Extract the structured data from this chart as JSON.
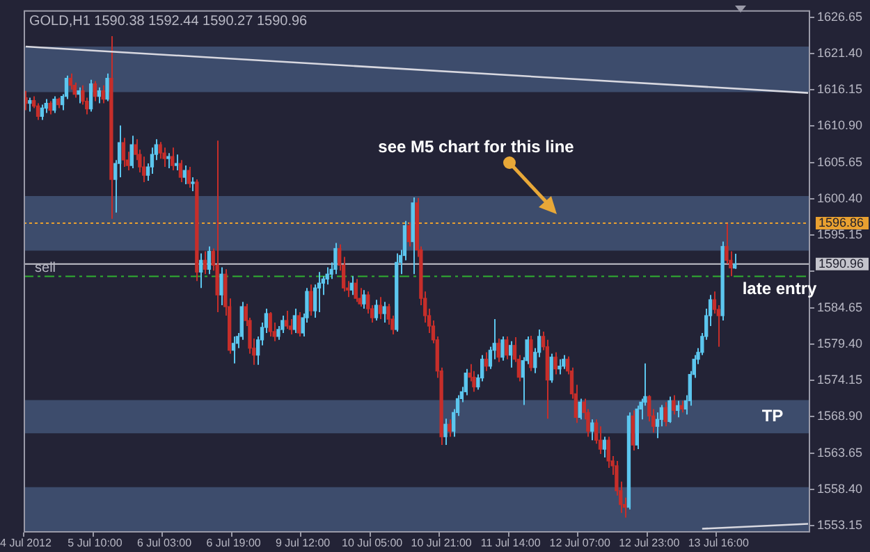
{
  "chart_data": {
    "type": "candlestick",
    "title": "GOLD,H1 1590.38 1592.44 1590.27 1590.96",
    "categories": [
      "4 Jul 2012",
      null,
      null,
      null,
      null,
      null,
      null,
      null,
      null,
      null,
      null,
      null,
      null,
      null,
      null,
      null,
      null,
      "5 Jul 10:00",
      null,
      null,
      null,
      null,
      null,
      null,
      null,
      null,
      null,
      null,
      null,
      null,
      null,
      null,
      null,
      null,
      "6 Jul 03:00",
      null,
      null,
      null,
      null,
      null,
      null,
      null,
      null,
      null,
      null,
      null,
      null,
      null,
      null,
      null,
      null,
      "6 Jul 19:00",
      null,
      null,
      null,
      null,
      null,
      null,
      null,
      null,
      null,
      null,
      null,
      null,
      null,
      null,
      null,
      null,
      "9 Jul 12:00",
      null,
      null,
      null,
      null,
      null,
      null,
      null,
      null,
      null,
      null,
      null,
      null,
      null,
      null,
      null,
      null,
      "10 Jul 05:00",
      null,
      null,
      null,
      null,
      null,
      null,
      null,
      null,
      null,
      null,
      null,
      null,
      null,
      null,
      null,
      null,
      "10 Jul 21:00",
      null,
      null,
      null,
      null,
      null,
      null,
      null,
      null,
      null,
      null,
      null,
      null,
      null,
      null,
      null,
      null,
      "11 Jul 14:00",
      null,
      null,
      null,
      null,
      null,
      null,
      null,
      null,
      null,
      null,
      null,
      null,
      null,
      null,
      null,
      null,
      "12 Jul 07:00",
      null,
      null,
      null,
      null,
      null,
      null,
      null,
      null,
      null,
      null,
      null,
      null,
      null,
      null,
      null,
      null,
      "12 Jul 23:00",
      null,
      null,
      null,
      null,
      null,
      null,
      null,
      null,
      null,
      null,
      null,
      null,
      null,
      null,
      null,
      null,
      "13 Jul 16:00",
      null,
      null,
      null,
      null,
      null,
      null,
      null,
      null,
      null,
      null,
      null,
      null,
      null,
      null,
      null,
      null,
      null,
      null,
      null,
      null,
      null,
      null
    ],
    "ohlc": [
      [
        1615,
        1616,
        1613.2,
        1614.2
      ],
      [
        1614.2,
        1615,
        1613,
        1614.6
      ],
      [
        1614.6,
        1615.2,
        1613.5,
        1613.8
      ],
      [
        1613.8,
        1614.2,
        1611.8,
        1612.3
      ],
      [
        1612.3,
        1614,
        1611.8,
        1613.5
      ],
      [
        1613.5,
        1614.8,
        1612.8,
        1614.2
      ],
      [
        1614.2,
        1614.5,
        1612.6,
        1613.2
      ],
      [
        1613.2,
        1615.2,
        1612.8,
        1614.8
      ],
      [
        1614.8,
        1615,
        1613.5,
        1614
      ],
      [
        1614,
        1615.5,
        1613.2,
        1615.2
      ],
      [
        1615.2,
        1618.2,
        1614.8,
        1617.8
      ],
      [
        1617.8,
        1618.5,
        1616.2,
        1616.8
      ],
      [
        1616.8,
        1617.2,
        1615,
        1615.5
      ],
      [
        1615.5,
        1616.5,
        1614.2,
        1616
      ],
      [
        1616,
        1616.8,
        1614,
        1614.5
      ],
      [
        1614.5,
        1615,
        1612.6,
        1613.4
      ],
      [
        1613.4,
        1617.6,
        1613,
        1617
      ],
      [
        1617,
        1617.4,
        1614.5,
        1615.2
      ],
      [
        1615.2,
        1616.5,
        1614.2,
        1616
      ],
      [
        1616,
        1616.8,
        1614.2,
        1614.8
      ],
      [
        1614.8,
        1618.5,
        1614.5,
        1617.8
      ],
      [
        1617.8,
        1623.9,
        1597.5,
        1603.2
      ],
      [
        1603.2,
        1606,
        1598.4,
        1605.5
      ],
      [
        1605.5,
        1611,
        1603.5,
        1608.5
      ],
      [
        1608.5,
        1609.2,
        1605,
        1606
      ],
      [
        1606,
        1607.2,
        1604.5,
        1605.2
      ],
      [
        1605.2,
        1609.5,
        1604.8,
        1608.2
      ],
      [
        1608.2,
        1609,
        1606,
        1606.8
      ],
      [
        1606.8,
        1607.5,
        1604.2,
        1605
      ],
      [
        1605,
        1606.5,
        1602.8,
        1603.8
      ],
      [
        1603.8,
        1605.5,
        1603,
        1605
      ],
      [
        1605,
        1607.8,
        1604,
        1606.8
      ],
      [
        1606.8,
        1609,
        1606,
        1608.2
      ],
      [
        1608.2,
        1608.6,
        1606.2,
        1607
      ],
      [
        1607,
        1607.8,
        1605,
        1606.2
      ],
      [
        1606.2,
        1607,
        1604.8,
        1606.5
      ],
      [
        1606.5,
        1607.8,
        1604.5,
        1605.2
      ],
      [
        1605.2,
        1606.8,
        1604.5,
        1605.5
      ],
      [
        1605.5,
        1606,
        1602.8,
        1603.5
      ],
      [
        1603.5,
        1605.2,
        1602.5,
        1604.5
      ],
      [
        1604.5,
        1605,
        1602,
        1602.6
      ],
      [
        1602.6,
        1603.5,
        1601.5,
        1602.8
      ],
      [
        1602.8,
        1603.2,
        1588.5,
        1589.8
      ],
      [
        1589.8,
        1592.5,
        1587.5,
        1591.5
      ],
      [
        1591.5,
        1592.8,
        1589.5,
        1590.2
      ],
      [
        1590.2,
        1593.5,
        1589.5,
        1592.8
      ],
      [
        1592.8,
        1593.2,
        1590,
        1590.8
      ],
      [
        1590.8,
        1608.8,
        1584,
        1586.5
      ],
      [
        1586.5,
        1590.5,
        1585,
        1589.5
      ],
      [
        1589.5,
        1590.2,
        1583.5,
        1584.8
      ],
      [
        1584.8,
        1586,
        1578,
        1578.5
      ],
      [
        1578.5,
        1580.5,
        1576.6,
        1579.5
      ],
      [
        1579.5,
        1581,
        1578.8,
        1580.5
      ],
      [
        1580.5,
        1585.5,
        1580,
        1584.8
      ],
      [
        1584.8,
        1585.2,
        1582,
        1582.8
      ],
      [
        1582.8,
        1583.2,
        1578,
        1578.8
      ],
      [
        1578.8,
        1580.2,
        1576.4,
        1577.8
      ],
      [
        1577.8,
        1580.5,
        1576.4,
        1580
      ],
      [
        1580,
        1582.5,
        1579.2,
        1581.8
      ],
      [
        1581.8,
        1584.5,
        1581,
        1583.8
      ],
      [
        1583.8,
        1584,
        1580.5,
        1581.2
      ],
      [
        1581.2,
        1582.5,
        1579.8,
        1580.5
      ],
      [
        1580.5,
        1582,
        1580,
        1581.5
      ],
      [
        1581.5,
        1583.5,
        1581,
        1582.8
      ],
      [
        1582.8,
        1584.2,
        1581.6,
        1582
      ],
      [
        1582,
        1583,
        1580.8,
        1581.5
      ],
      [
        1581.5,
        1584.5,
        1581,
        1583.5
      ],
      [
        1583.5,
        1584,
        1580.5,
        1581
      ],
      [
        1581,
        1583.8,
        1580.5,
        1583.2
      ],
      [
        1583.2,
        1587.5,
        1582.5,
        1587
      ],
      [
        1587,
        1588,
        1583.5,
        1584.2
      ],
      [
        1584.2,
        1588,
        1583.2,
        1587.5
      ],
      [
        1587.5,
        1589.8,
        1584,
        1588.2
      ],
      [
        1588.2,
        1589.2,
        1586.5,
        1588.8
      ],
      [
        1588.8,
        1590.5,
        1588,
        1589.5
      ],
      [
        1589.5,
        1591.2,
        1588.8,
        1590.2
      ],
      [
        1590.2,
        1594,
        1589.5,
        1593.2
      ],
      [
        1593.2,
        1593.8,
        1590,
        1590.8
      ],
      [
        1590.8,
        1592,
        1587,
        1587.5
      ],
      [
        1587.5,
        1588.5,
        1586.2,
        1587.2
      ],
      [
        1587.2,
        1589.2,
        1586.5,
        1588.2
      ],
      [
        1588.2,
        1588.8,
        1585.5,
        1586
      ],
      [
        1586,
        1587.5,
        1584.8,
        1585.2
      ],
      [
        1585.2,
        1587.2,
        1584.5,
        1586.5
      ],
      [
        1586.5,
        1587,
        1583.8,
        1584.5
      ],
      [
        1584.5,
        1585,
        1582.5,
        1583.2
      ],
      [
        1583.2,
        1585.8,
        1582.8,
        1585
      ],
      [
        1585,
        1586.2,
        1583,
        1583.8
      ],
      [
        1583.8,
        1585.5,
        1582.5,
        1584.8
      ],
      [
        1584.8,
        1585.2,
        1582.2,
        1583
      ],
      [
        1583,
        1583.5,
        1580.8,
        1581.5
      ],
      [
        1581.5,
        1592.5,
        1581.2,
        1591.2
      ],
      [
        1591.2,
        1593,
        1589.5,
        1592.2
      ],
      [
        1592.2,
        1597.2,
        1591.5,
        1596.5
      ],
      [
        1596.5,
        1597,
        1593.5,
        1594.2
      ],
      [
        1594.2,
        1600.6,
        1589.5,
        1599.8
      ],
      [
        1599.8,
        1600.5,
        1592,
        1593
      ],
      [
        1593,
        1593.5,
        1585,
        1586
      ],
      [
        1586,
        1587,
        1582.5,
        1583.5
      ],
      [
        1583.5,
        1584.5,
        1581,
        1582
      ],
      [
        1582,
        1582.8,
        1579.5,
        1580
      ],
      [
        1580,
        1580.5,
        1574.5,
        1575.5
      ],
      [
        1575.5,
        1576,
        1564.8,
        1566
      ],
      [
        1566,
        1568.6,
        1564.8,
        1567.8
      ],
      [
        1567.8,
        1568.5,
        1566,
        1566.8
      ],
      [
        1566.8,
        1570,
        1566,
        1569.5
      ],
      [
        1569.5,
        1572,
        1569,
        1571.5
      ],
      [
        1571.5,
        1573.2,
        1571,
        1572.5
      ],
      [
        1572.5,
        1575.8,
        1572,
        1575.2
      ],
      [
        1575.2,
        1576.5,
        1574,
        1574.6
      ],
      [
        1574.6,
        1575.5,
        1572.5,
        1573.2
      ],
      [
        1573.2,
        1575,
        1572.8,
        1574.5
      ],
      [
        1574.5,
        1577.8,
        1574,
        1577.2
      ],
      [
        1577.2,
        1578.2,
        1575.5,
        1576.2
      ],
      [
        1576.2,
        1579,
        1575.8,
        1578.5
      ],
      [
        1578.5,
        1583,
        1577.2,
        1579.5
      ],
      [
        1579.5,
        1580.2,
        1576.8,
        1577.5
      ],
      [
        1577.5,
        1580.5,
        1577,
        1580
      ],
      [
        1580,
        1580.5,
        1577.2,
        1577.8
      ],
      [
        1577.8,
        1579.8,
        1576,
        1579.2
      ],
      [
        1579.2,
        1580.4,
        1576.8,
        1577.2
      ],
      [
        1577.2,
        1577.8,
        1574,
        1574.6
      ],
      [
        1574.6,
        1577.5,
        1570.6,
        1577
      ],
      [
        1577,
        1580.5,
        1576.5,
        1580
      ],
      [
        1580,
        1580.6,
        1575.5,
        1576
      ],
      [
        1576,
        1578.8,
        1575.2,
        1578.2
      ],
      [
        1578.2,
        1581.5,
        1577.5,
        1580.5
      ],
      [
        1580.5,
        1581.2,
        1578.5,
        1579
      ],
      [
        1579,
        1580,
        1568.6,
        1574.2
      ],
      [
        1574.2,
        1578,
        1573.8,
        1577.5
      ],
      [
        1577.5,
        1578.2,
        1575,
        1575.8
      ],
      [
        1575.8,
        1577.2,
        1575,
        1576.2
      ],
      [
        1576.2,
        1577.8,
        1575.8,
        1577.2
      ],
      [
        1577.2,
        1577.6,
        1575,
        1575.5
      ],
      [
        1575.5,
        1576,
        1571.5,
        1572.2
      ],
      [
        1572.2,
        1573.5,
        1568,
        1568.8
      ],
      [
        1568.8,
        1571.5,
        1568.5,
        1571
      ],
      [
        1571,
        1571.5,
        1568.5,
        1569.5
      ],
      [
        1569.5,
        1570,
        1566,
        1566.8
      ],
      [
        1566.8,
        1568.5,
        1565.5,
        1568
      ],
      [
        1568,
        1568.5,
        1565,
        1565.5
      ],
      [
        1565.5,
        1567.5,
        1563.5,
        1564.2
      ],
      [
        1564.2,
        1566,
        1563,
        1565.5
      ],
      [
        1565.5,
        1566,
        1561.5,
        1562.5
      ],
      [
        1562.5,
        1563.2,
        1560.5,
        1561.8
      ],
      [
        1561.8,
        1562.5,
        1557.5,
        1558.2
      ],
      [
        1558.2,
        1559.5,
        1555,
        1556.2
      ],
      [
        1556.2,
        1557.2,
        1554.3,
        1555.8
      ],
      [
        1555.8,
        1569.5,
        1555.5,
        1569
      ],
      [
        1569,
        1569.8,
        1564,
        1564.8
      ],
      [
        1564.8,
        1570.5,
        1564.2,
        1570
      ],
      [
        1570,
        1571.5,
        1568.5,
        1571
      ],
      [
        1571,
        1576.6,
        1570.5,
        1571.8
      ],
      [
        1571.8,
        1572,
        1568.2,
        1569
      ],
      [
        1569,
        1570,
        1566.6,
        1567.5
      ],
      [
        1567.5,
        1569.5,
        1565.8,
        1568.5
      ],
      [
        1568.5,
        1570.6,
        1567.5,
        1570.2
      ],
      [
        1570.2,
        1571,
        1567.5,
        1568.2
      ],
      [
        1568.2,
        1571.8,
        1568,
        1571.2
      ],
      [
        1571.2,
        1572,
        1569.2,
        1569.8
      ],
      [
        1569.8,
        1571.2,
        1568.8,
        1570.5
      ],
      [
        1570.5,
        1571.2,
        1569.5,
        1570
      ],
      [
        1570,
        1572,
        1569.2,
        1571.2
      ],
      [
        1571.2,
        1575.5,
        1570.5,
        1575
      ],
      [
        1575,
        1577.8,
        1574.5,
        1577.2
      ],
      [
        1577.2,
        1578.8,
        1576.5,
        1578.2
      ],
      [
        1578.2,
        1581,
        1577.8,
        1580.5
      ],
      [
        1580.5,
        1584.5,
        1580,
        1583.5
      ],
      [
        1583.5,
        1586.5,
        1582,
        1585.8
      ],
      [
        1585.8,
        1587,
        1583.8,
        1584.4
      ],
      [
        1584.4,
        1585,
        1579,
        1583.5
      ],
      [
        1583.5,
        1594.2,
        1582.8,
        1593.5
      ],
      [
        1593.5,
        1596.8,
        1591,
        1591.5
      ],
      [
        1591.5,
        1592.8,
        1589.2,
        1590.4
      ],
      [
        1590.38,
        1592.44,
        1590.27,
        1590.96
      ],
      null,
      null,
      null,
      null,
      null,
      null,
      null,
      null,
      null,
      null,
      null,
      null,
      null,
      null,
      null,
      null,
      null,
      null
    ],
    "series": [
      {
        "type": "line",
        "color": "#d8d8e0",
        "values": [
          1622.4,
          null,
          null,
          null,
          null,
          null,
          null,
          null,
          null,
          null,
          null,
          null,
          null,
          null,
          null,
          null,
          null,
          null,
          null,
          null,
          null,
          null,
          null,
          null,
          null,
          null,
          null,
          null,
          null,
          null,
          null,
          null,
          null,
          null,
          null,
          null,
          null,
          null,
          null,
          null,
          null,
          null,
          null,
          null,
          null,
          null,
          null,
          null,
          null,
          null,
          null,
          null,
          null,
          null,
          null,
          null,
          null,
          null,
          null,
          null,
          null,
          null,
          null,
          null,
          null,
          null,
          null,
          null,
          null,
          null,
          null,
          null,
          null,
          null,
          null,
          null,
          null,
          null,
          null,
          null,
          null,
          null,
          null,
          null,
          null,
          null,
          null,
          null,
          null,
          null,
          null,
          null,
          null,
          null,
          null,
          null,
          null,
          null,
          null,
          null,
          null,
          null,
          null,
          null,
          null,
          null,
          null,
          null,
          null,
          null,
          null,
          null,
          null,
          null,
          null,
          null,
          null,
          null,
          null,
          null,
          null,
          null,
          null,
          null,
          null,
          null,
          null,
          null,
          null,
          null,
          null,
          null,
          null,
          null,
          null,
          null,
          null,
          null,
          null,
          null,
          null,
          null,
          null,
          null,
          null,
          null,
          null,
          null,
          null,
          null,
          null,
          null,
          null,
          null,
          null,
          null,
          null,
          null,
          null,
          null,
          null,
          null,
          null,
          null,
          null,
          null,
          null,
          null,
          null,
          null,
          null,
          null,
          null,
          null,
          null,
          null,
          null,
          null,
          null,
          null,
          null,
          null,
          null,
          null,
          null,
          null,
          null,
          null,
          null,
          null,
          null,
          null,
          1615.7
        ]
      },
      {
        "type": "line",
        "color": "#d8d8e0",
        "values": [
          null,
          null,
          null,
          null,
          null,
          null,
          null,
          null,
          null,
          null,
          null,
          null,
          null,
          null,
          null,
          null,
          null,
          null,
          null,
          null,
          null,
          null,
          null,
          null,
          null,
          null,
          null,
          null,
          null,
          null,
          null,
          null,
          null,
          null,
          null,
          null,
          null,
          null,
          null,
          null,
          null,
          null,
          null,
          null,
          null,
          null,
          null,
          null,
          null,
          null,
          null,
          null,
          null,
          null,
          null,
          null,
          null,
          null,
          null,
          null,
          null,
          null,
          null,
          null,
          null,
          null,
          null,
          null,
          null,
          null,
          null,
          null,
          null,
          null,
          null,
          null,
          null,
          null,
          null,
          null,
          null,
          null,
          null,
          null,
          null,
          null,
          null,
          null,
          null,
          null,
          null,
          null,
          null,
          null,
          null,
          null,
          null,
          null,
          null,
          null,
          null,
          null,
          null,
          null,
          null,
          null,
          null,
          null,
          null,
          null,
          null,
          null,
          null,
          null,
          null,
          null,
          null,
          null,
          null,
          null,
          null,
          null,
          null,
          null,
          null,
          null,
          null,
          null,
          null,
          null,
          null,
          null,
          null,
          null,
          null,
          null,
          null,
          null,
          null,
          null,
          null,
          null,
          null,
          null,
          null,
          null,
          null,
          null,
          null,
          null,
          null,
          null,
          null,
          null,
          null,
          null,
          null,
          null,
          null,
          null,
          null,
          null,
          null,
          null,
          null,
          null,
          1552.7,
          null,
          null,
          null,
          null,
          null,
          null,
          null,
          null,
          null,
          null,
          null,
          null,
          null,
          null,
          null,
          null,
          null,
          null,
          null,
          null,
          null,
          null,
          null,
          null,
          null,
          1553.4
        ]
      }
    ],
    "ylim": [
      1552.15,
      1627.64
    ],
    "yticks": [
      1626.65,
      {
        "value": 1621.4,
        "label": "1621.40"
      },
      1616.15,
      {
        "value": 1610.9,
        "label": "1610.90"
      },
      1605.65,
      {
        "value": 1600.4,
        "label": "1600.40"
      },
      1595.15,
      {
        "value": 1589.9,
        "label": null
      },
      1584.65,
      {
        "value": 1579.4,
        "label": "1579.40"
      },
      1574.15,
      {
        "value": 1568.9,
        "label": "1568.90"
      },
      1563.65,
      {
        "value": 1558.4,
        "label": "1558.40"
      },
      1553.15
    ],
    "bands": [
      {
        "axis": "y",
        "from": 1615.8,
        "to": 1622.4,
        "color": "#3d4c6c"
      },
      {
        "axis": "y",
        "from": 1592.9,
        "to": 1600.8,
        "color": "#3d4c6c"
      },
      {
        "axis": "y",
        "from": 1566.5,
        "to": 1571.3,
        "label": "TP",
        "color": "#3d4c6c"
      },
      {
        "axis": "y",
        "from": 1552.15,
        "to": 1558.7,
        "color": "#3d4c6c"
      }
    ],
    "ref_lines": [
      {
        "axis": "y",
        "value": 1596.86,
        "label": "1596.86",
        "color": "#e8a030",
        "line_style": "dotted"
      },
      {
        "axis": "y",
        "value": 1590.96,
        "label": "1590.96",
        "color": "#c4c4cc",
        "line_style": "solid"
      },
      {
        "axis": "y",
        "value": 1589.17,
        "label": "sell",
        "color": "#30b030",
        "line_style": "dashed"
      }
    ],
    "annotations": [
      "see M5 chart for this line",
      "late entry"
    ],
    "legend": false
  }
}
